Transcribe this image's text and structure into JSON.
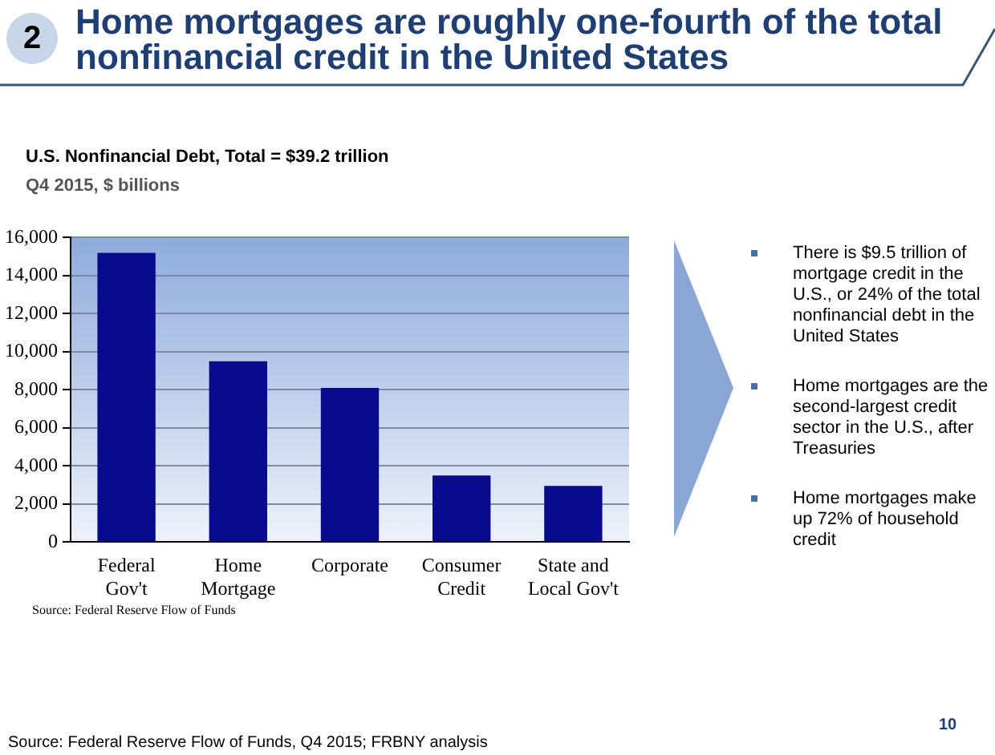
{
  "chart_data": {
    "type": "bar",
    "title": "Home mortgages are roughly one-fourth of the total nonfinancial credit in the United States",
    "subtitle": "U.S. Nonfinancial Debt, Total = $39.2 trillion",
    "ylabel": "Q4 2015, $ billions",
    "categories": [
      "Federal Gov't",
      "Home Mortgage",
      "Corporate",
      "Consumer Credit",
      "State and Local Gov't"
    ],
    "values": [
      15200,
      9500,
      8100,
      3500,
      2950
    ],
    "color": "#0a0a8c",
    "ylim": [
      0,
      16000
    ],
    "yticks": [
      {
        "value": 0,
        "label": "0"
      },
      {
        "value": 2000,
        "label": "2,000"
      },
      {
        "value": 4000,
        "label": "4,000"
      },
      {
        "value": 6000,
        "label": "6,000"
      },
      {
        "value": 8000,
        "label": "8,000"
      },
      {
        "value": 10000,
        "label": "10,000"
      },
      {
        "value": 12000,
        "label": "12,000"
      },
      {
        "value": 14000,
        "label": "14,000"
      },
      {
        "value": 16000,
        "label": "16,000"
      }
    ],
    "grid": "y",
    "annotations": [
      "2",
      "There is $9.5 trillion of mortgage credit in the U.S., or 24% of the total nonfinancial debt in the United States",
      "Home mortgages are the second-largest credit sector in the U.S., after Treasuries",
      "Home mortgages make up 72% of household credit",
      "Source: Federal Reserve Flow of Funds",
      "Source: Federal Reserve Flow of Funds, Q4 2015; FRBNY analysis",
      "10"
    ]
  }
}
